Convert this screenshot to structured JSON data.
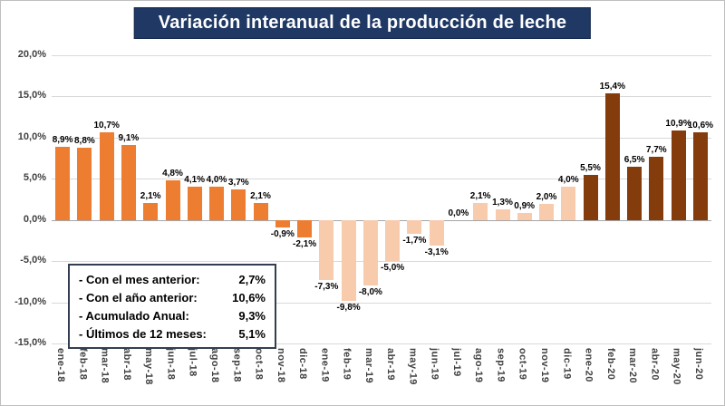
{
  "title": "Variación interanual de la producción de leche",
  "y_axis": {
    "ticks": [
      "20,0%",
      "15,0%",
      "10,0%",
      "5,0%",
      "0,0%",
      "-5,0%",
      "-10,0%",
      "-15,0%"
    ]
  },
  "chart_data": {
    "type": "bar",
    "title": "Variación interanual de la producción de leche",
    "categories": [
      "ene-18",
      "feb-18",
      "mar-18",
      "abr-18",
      "may-18",
      "jun-18",
      "jul-18",
      "ago-18",
      "sep-18",
      "oct-18",
      "nov-18",
      "dic-18",
      "ene-19",
      "feb-19",
      "mar-19",
      "abr-19",
      "may-19",
      "jun-19",
      "jul-19",
      "ago-19",
      "sep-19",
      "oct-19",
      "nov-19",
      "dic-19",
      "ene-20",
      "feb-20",
      "mar-20",
      "abr-20",
      "may-20",
      "jun-20"
    ],
    "values": [
      8.9,
      8.8,
      10.7,
      9.1,
      2.1,
      4.8,
      4.1,
      4.0,
      3.7,
      2.1,
      -0.9,
      -2.1,
      -7.3,
      -9.8,
      -8.0,
      -5.0,
      -1.7,
      -3.1,
      0.0,
      2.1,
      1.3,
      0.9,
      2.0,
      4.0,
      5.5,
      15.4,
      6.5,
      7.7,
      10.9,
      10.6
    ],
    "data_labels": [
      "8,9%",
      "8,8%",
      "10,7%",
      "9,1%",
      "2,1%",
      "4,8%",
      "4,1%",
      "4,0%",
      "3,7%",
      "2,1%",
      "-0,9%",
      "-2,1%",
      "-7,3%",
      "-9,8%",
      "-8,0%",
      "-5,0%",
      "-1,7%",
      "-3,1%",
      "0,0%",
      "2,1%",
      "1,3%",
      "0,9%",
      "2,0%",
      "4,0%",
      "5,5%",
      "15,4%",
      "6,5%",
      "7,7%",
      "10,9%",
      "10,6%"
    ],
    "ylim": [
      -15,
      20
    ],
    "ytick_step": 5,
    "grid": true,
    "legend_position": "none",
    "xlabel": "",
    "ylabel": "",
    "series_colors_by_year": {
      "18": "#ED7D31",
      "19": "#F8CBAD",
      "20": "#843C0C"
    }
  },
  "summary_box": {
    "rows": [
      {
        "label": "- Con el mes anterior:",
        "value": "2,7%"
      },
      {
        "label": "- Con el año anterior:",
        "value": "10,6%"
      },
      {
        "label": "- Acumulado Anual:",
        "value": "9,3%"
      },
      {
        "label": "- Últimos de 12 meses:",
        "value": "5,1%"
      }
    ]
  },
  "colors": {
    "title_bg": "#1F3864",
    "title_text": "#FFFFFF",
    "grid": "#D9D9D9",
    "axis_text": "#404040"
  }
}
